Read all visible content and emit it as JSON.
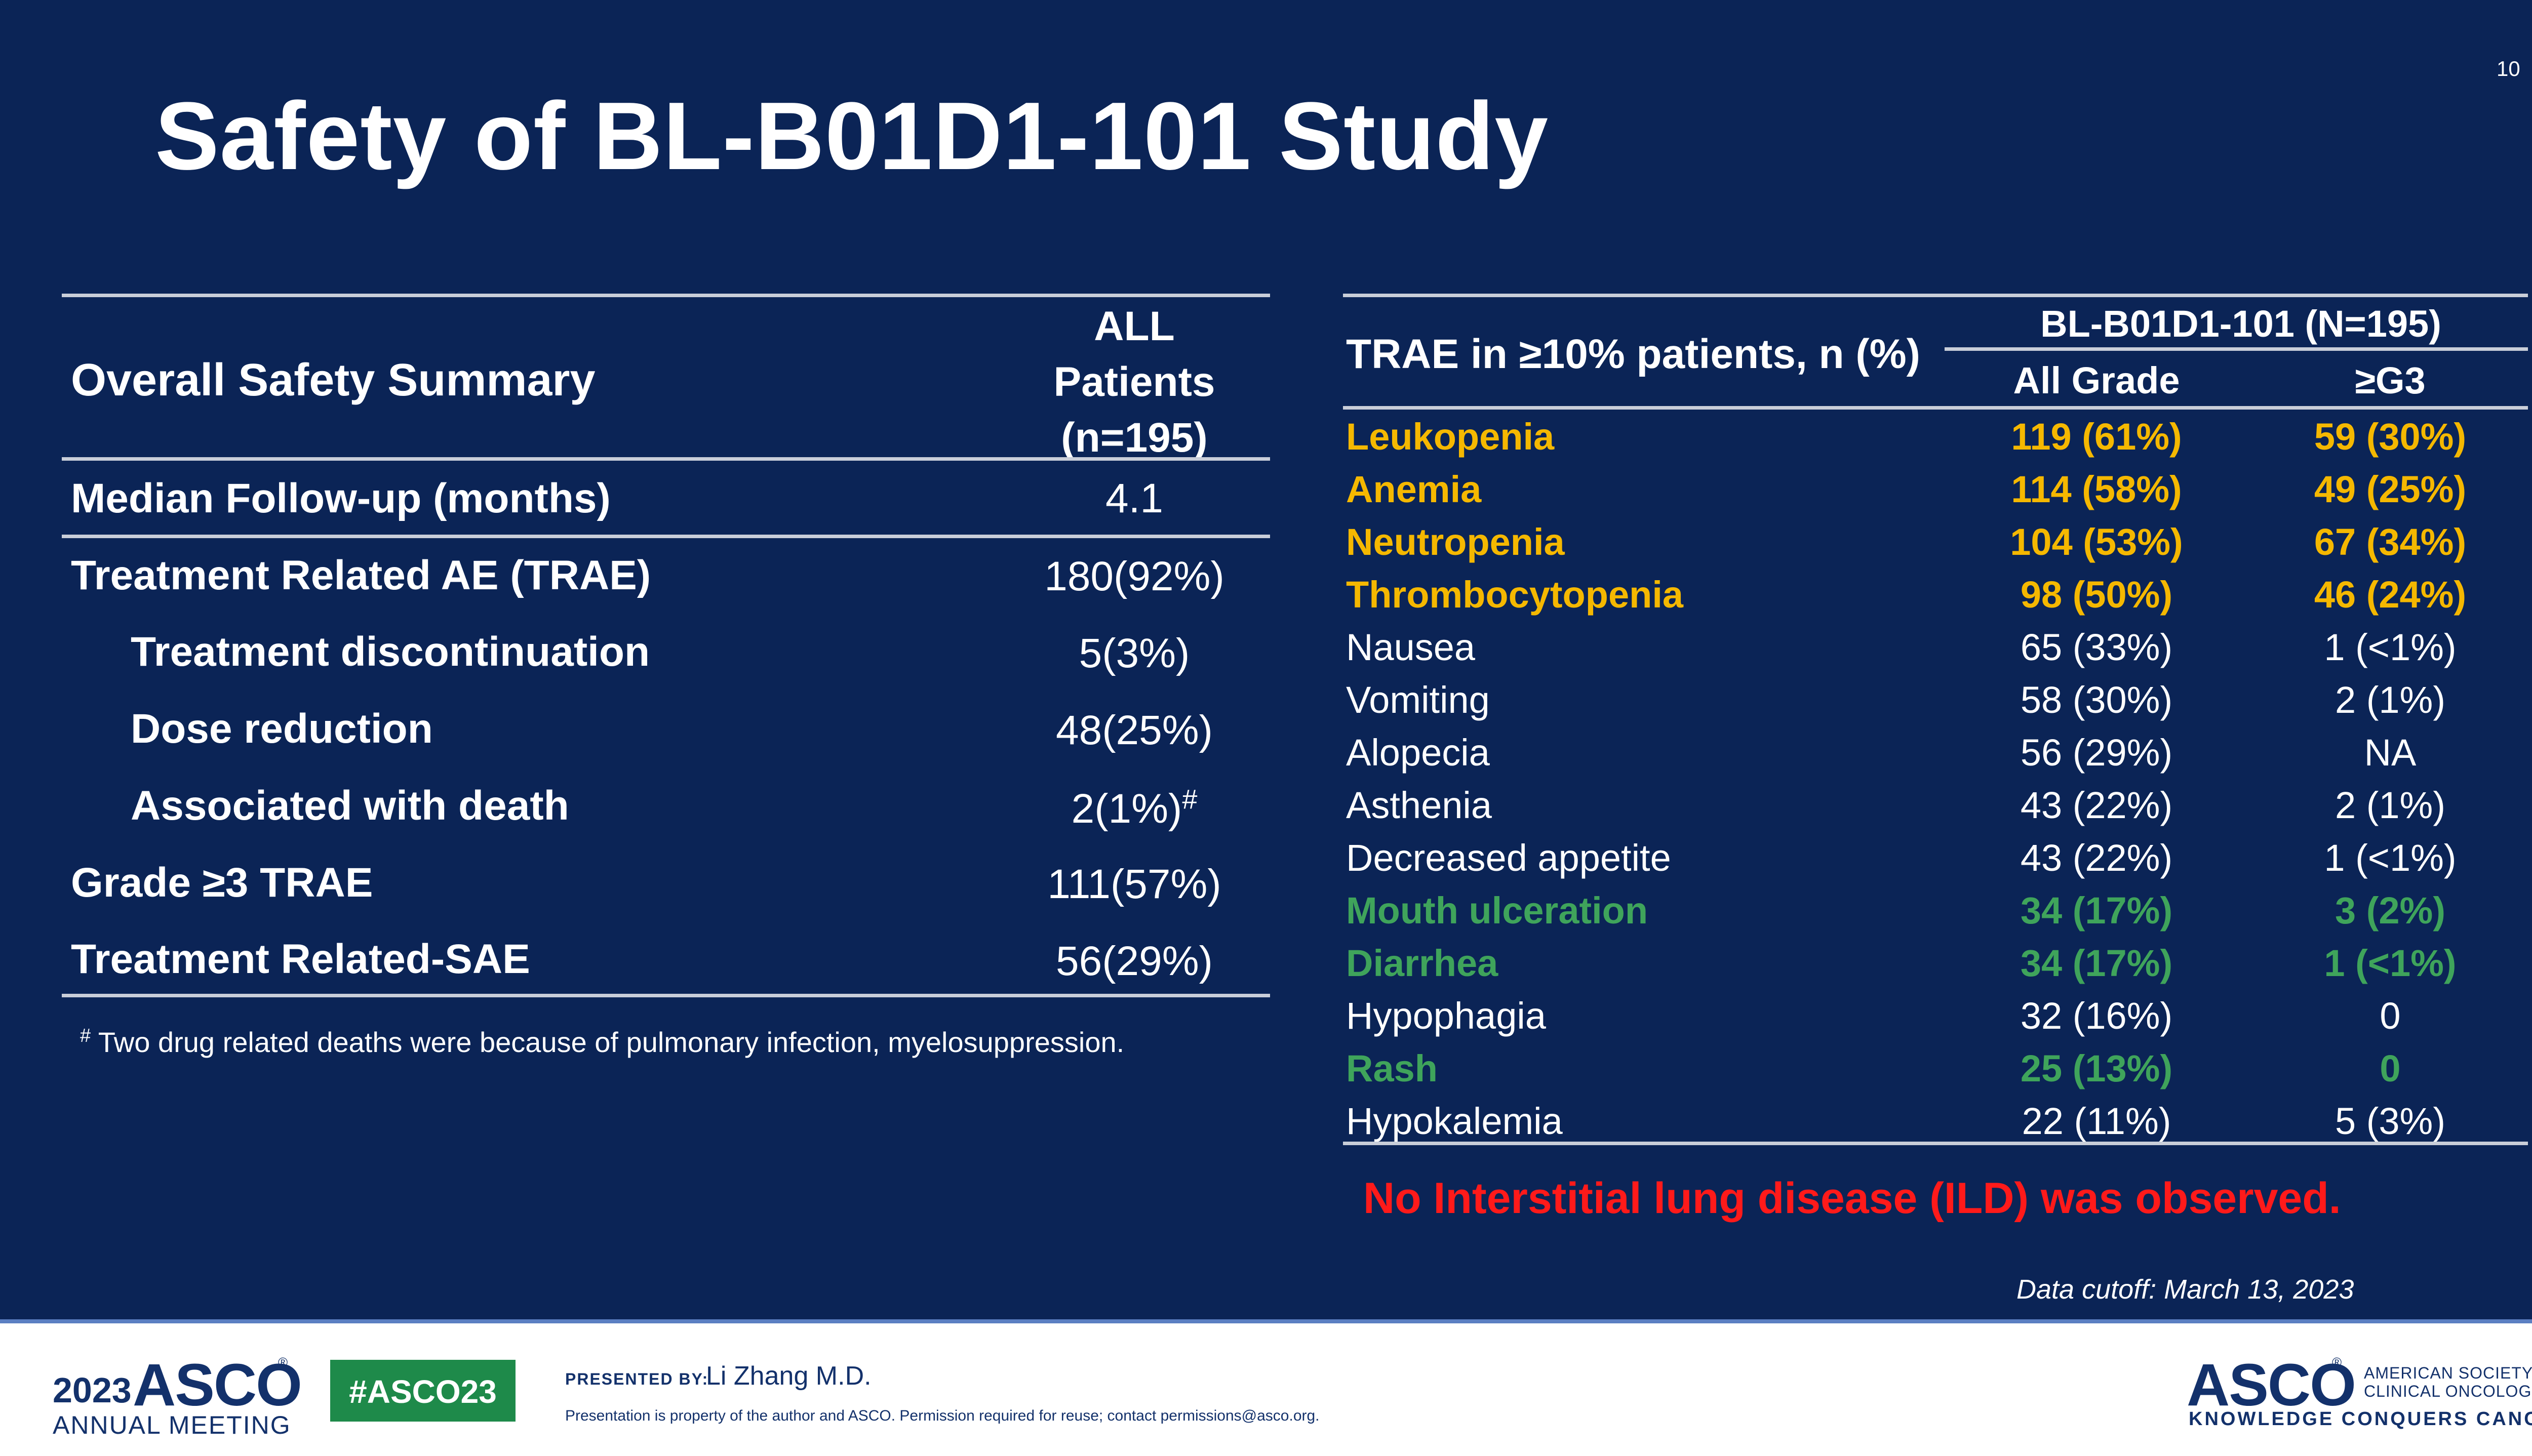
{
  "slide": {
    "number": "10",
    "title": "Safety of BL-B01D1-101 Study"
  },
  "left_table": {
    "header_label": "Overall Safety Summary",
    "header_value_lines": [
      "ALL",
      "Patients",
      "(n=195)"
    ],
    "rows": [
      {
        "label": "Median Follow-up (months)",
        "value": "4.1"
      },
      {
        "label": "Treatment Related AE (TRAE)",
        "value": "180(92%)"
      },
      {
        "label": "Treatment discontinuation",
        "value": "5(3%)"
      },
      {
        "label": "Dose reduction",
        "value": "48(25%)"
      },
      {
        "label": "Associated with death",
        "value": "2(1%)",
        "marker": "#"
      },
      {
        "label": "Grade ≥3 TRAE",
        "value": "111(57%)"
      },
      {
        "label": "Treatment Related-SAE",
        "value": "56(29%)"
      }
    ],
    "footnote_marker": "#",
    "footnote": "Two drug related deaths were because of pulmonary infection, myelosuppression."
  },
  "right_table": {
    "row_header": "TRAE in ≥10% patients, n (%)",
    "group_header": "BL-B01D1-101 (N=195)",
    "col_all": "All Grade",
    "col_g3": "≥G3",
    "rows": [
      {
        "name": "Leukopenia",
        "all": "119 (61%)",
        "g3": "59 (30%)"
      },
      {
        "name": "Anemia",
        "all": "114 (58%)",
        "g3": "49 (25%)"
      },
      {
        "name": "Neutropenia",
        "all": "104 (53%)",
        "g3": "67 (34%)"
      },
      {
        "name": "Thrombocytopenia",
        "all": "98 (50%)",
        "g3": "46 (24%)"
      },
      {
        "name": "Nausea",
        "all": "65 (33%)",
        "g3": "1 (<1%)"
      },
      {
        "name": "Vomiting",
        "all": "58 (30%)",
        "g3": "2 (1%)"
      },
      {
        "name": "Alopecia",
        "all": "56 (29%)",
        "g3": "NA"
      },
      {
        "name": "Asthenia",
        "all": "43 (22%)",
        "g3": "2 (1%)"
      },
      {
        "name": "Decreased appetite",
        "all": "43 (22%)",
        "g3": "1 (<1%)"
      },
      {
        "name": "Mouth ulceration",
        "all": "34 (17%)",
        "g3": "3 (2%)"
      },
      {
        "name": "Diarrhea",
        "all": "34 (17%)",
        "g3": "1 (<1%)"
      },
      {
        "name": "Hypophagia",
        "all": "32 (16%)",
        "g3": "0"
      },
      {
        "name": "Rash",
        "all": "25 (13%)",
        "g3": "0"
      },
      {
        "name": "Hypokalemia",
        "all": "22 (11%)",
        "g3": "5 (3%)"
      }
    ],
    "note": "No Interstitial lung disease (ILD) was observed.",
    "data_cutoff": "Data cutoff: March 13, 2023"
  },
  "colors": {
    "background": "#0b2456",
    "highlight_yellow": "#f5b800",
    "highlight_green": "#3fa45b",
    "note_red": "#ff1a1a",
    "asco_navy": "#13316b",
    "hashtag_green": "#1e8a4a"
  },
  "footer": {
    "meeting_year": "2023",
    "meeting_brand": "ASCO",
    "meeting_sub": "ANNUAL MEETING",
    "hashtag": "#ASCO23",
    "presented_by_label": "PRESENTED BY:",
    "presenter": "Li Zhang M.D.",
    "disclaimer": "Presentation is property of the author and ASCO. Permission required for reuse; contact permissions@asco.org.",
    "org_brand": "ASCO",
    "org_name_line1": "AMERICAN SOCIETY OF",
    "org_name_line2": "CLINICAL ONCOLOGY",
    "org_tagline": "KNOWLEDGE CONQUERS CANCER"
  }
}
